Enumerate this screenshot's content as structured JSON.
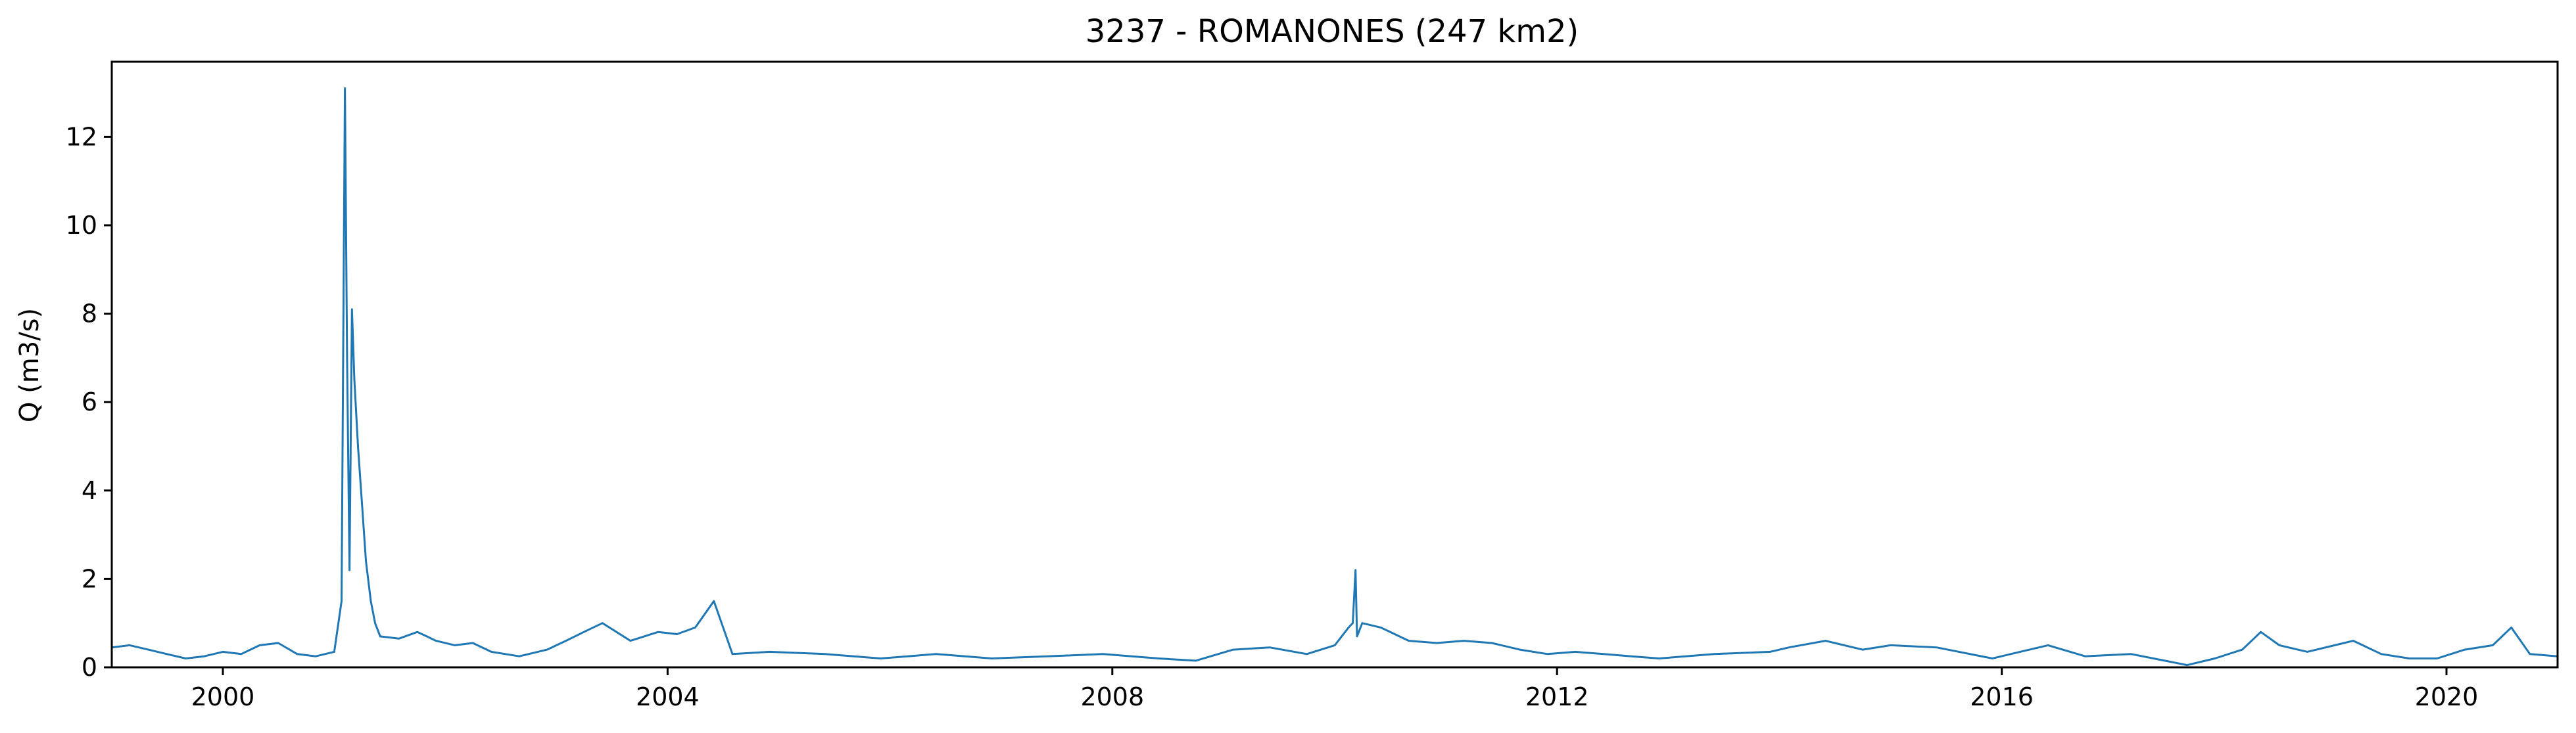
{
  "chart_data": {
    "type": "line",
    "title": "3237 - ROMANONES (247 km2)",
    "xlabel": "",
    "ylabel": "Q (m3/s)",
    "xlim": [
      "1999-01-01",
      "2020-12-31"
    ],
    "ylim": [
      0,
      13.7
    ],
    "grid": false,
    "legend": "none",
    "line_color": "#1f77b4",
    "x_ticks": [
      {
        "date": "2000-01-01",
        "label": "2000"
      },
      {
        "date": "2004-01-01",
        "label": "2004"
      },
      {
        "date": "2008-01-01",
        "label": "2008"
      },
      {
        "date": "2012-01-01",
        "label": "2012"
      },
      {
        "date": "2016-01-01",
        "label": "2016"
      },
      {
        "date": "2020-01-01",
        "label": "2020"
      }
    ],
    "y_ticks": [
      {
        "value": 0,
        "label": "0"
      },
      {
        "value": 2,
        "label": "2"
      },
      {
        "value": 4,
        "label": "4"
      },
      {
        "value": 6,
        "label": "6"
      },
      {
        "value": 8,
        "label": "8"
      },
      {
        "value": 10,
        "label": "10"
      },
      {
        "value": 12,
        "label": "12"
      }
    ],
    "series": [
      {
        "x": [
          "1999-01-01",
          "1999-03-01",
          "1999-05-01",
          "1999-07-01",
          "1999-09-01",
          "1999-11-01",
          "2000-01-01",
          "2000-03-01",
          "2000-05-01",
          "2000-07-01",
          "2000-09-01",
          "2000-11-01",
          "2001-01-01",
          "2001-01-25",
          "2001-02-05",
          "2001-02-12",
          "2001-02-20",
          "2001-02-28",
          "2001-03-08",
          "2001-03-20",
          "2001-04-01",
          "2001-04-15",
          "2001-05-01",
          "2001-05-15",
          "2001-06-01",
          "2001-08-01",
          "2001-10-01",
          "2001-11-01",
          "2001-12-01",
          "2002-02-01",
          "2002-04-01",
          "2002-06-01",
          "2002-09-01",
          "2002-12-01",
          "2003-02-01",
          "2003-04-01",
          "2003-06-01",
          "2003-09-01",
          "2003-12-01",
          "2004-02-01",
          "2004-04-01",
          "2004-06-01",
          "2004-08-01",
          "2004-12-01",
          "2005-06-01",
          "2005-12-01",
          "2006-06-01",
          "2006-12-01",
          "2007-06-01",
          "2007-12-01",
          "2008-06-01",
          "2008-10-01",
          "2009-02-01",
          "2009-06-01",
          "2009-10-01",
          "2010-01-01",
          "2010-02-15",
          "2010-03-01",
          "2010-03-10",
          "2010-03-15",
          "2010-04-01",
          "2010-06-01",
          "2010-09-01",
          "2010-12-01",
          "2011-03-01",
          "2011-06-01",
          "2011-09-01",
          "2011-12-01",
          "2012-03-01",
          "2012-06-01",
          "2012-09-01",
          "2012-12-01",
          "2013-06-01",
          "2013-12-01",
          "2014-02-01",
          "2014-06-01",
          "2014-10-01",
          "2015-01-01",
          "2015-06-01",
          "2015-12-01",
          "2016-03-01",
          "2016-06-01",
          "2016-10-01",
          "2017-03-01",
          "2017-09-01",
          "2017-12-01",
          "2018-03-01",
          "2018-05-01",
          "2018-07-01",
          "2018-10-01",
          "2019-03-01",
          "2019-06-01",
          "2019-09-01",
          "2019-12-01",
          "2020-03-01",
          "2020-06-01",
          "2020-08-01",
          "2020-10-01",
          "2020-12-31"
        ],
        "values": [
          0.45,
          0.5,
          0.4,
          0.3,
          0.2,
          0.25,
          0.35,
          0.3,
          0.5,
          0.55,
          0.3,
          0.25,
          0.35,
          1.5,
          13.1,
          7.0,
          2.2,
          8.1,
          6.5,
          5.0,
          3.8,
          2.4,
          1.5,
          1.0,
          0.7,
          0.65,
          0.8,
          0.7,
          0.6,
          0.5,
          0.55,
          0.35,
          0.25,
          0.4,
          0.6,
          0.8,
          1.0,
          0.6,
          0.8,
          0.75,
          0.9,
          1.5,
          0.3,
          0.35,
          0.3,
          0.2,
          0.3,
          0.2,
          0.25,
          0.3,
          0.2,
          0.15,
          0.4,
          0.45,
          0.3,
          0.5,
          0.9,
          1.0,
          2.2,
          0.7,
          1.0,
          0.9,
          0.6,
          0.55,
          0.6,
          0.55,
          0.4,
          0.3,
          0.35,
          0.3,
          0.25,
          0.2,
          0.3,
          0.35,
          0.45,
          0.6,
          0.4,
          0.5,
          0.45,
          0.2,
          0.35,
          0.5,
          0.25,
          0.3,
          0.05,
          0.2,
          0.4,
          0.8,
          0.5,
          0.35,
          0.6,
          0.3,
          0.2,
          0.2,
          0.4,
          0.5,
          0.9,
          0.3,
          0.25
        ]
      }
    ]
  }
}
